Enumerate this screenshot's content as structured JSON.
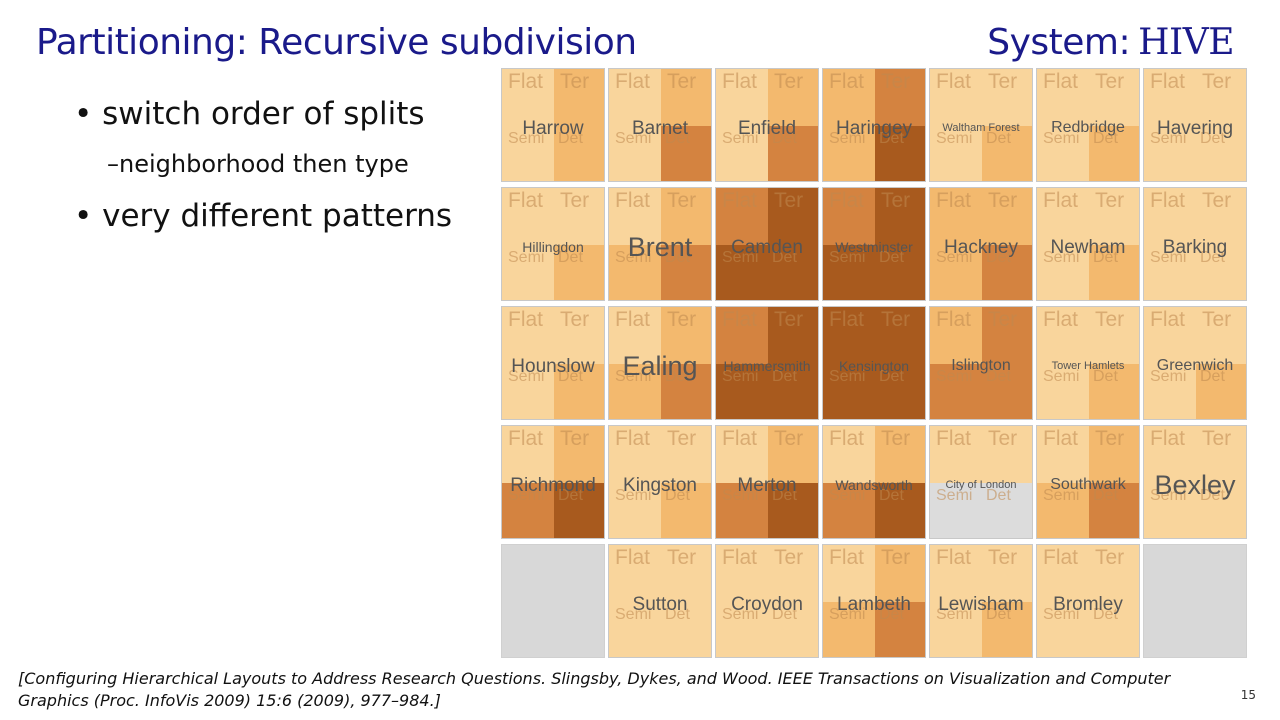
{
  "slide": {
    "title": "Partitioning: Recursive subdivision",
    "system_label": "System:",
    "system_name": "HIVE",
    "bullets": {
      "b1": "• switch order of splits",
      "b1_sub": "–neighborhood then type",
      "b2": "• very different patterns"
    },
    "citation": "[Configuring Hierarchical Layouts to Address Research Questions. Slingsby, Dykes, and Wood.  IEEE Transactions on Visualization and Computer Graphics (Proc. InfoVis 2009) 15:6 (2009), 977–984.]",
    "page_number": "15"
  },
  "quadrant_labels": [
    "Flat",
    "Ter",
    "Semi",
    "Det"
  ],
  "colors": {
    "light": "#fde6bd",
    "mid": "#f3b96e",
    "dark": "#a85a1e",
    "missing": "#d8d8d8",
    "text_blue": "#1a1a8a"
  },
  "neighborhoods": [
    {
      "name": "Harrow",
      "intensity": [
        1,
        2,
        1,
        2
      ]
    },
    {
      "name": "Barnet",
      "intensity": [
        1,
        2,
        1,
        3
      ]
    },
    {
      "name": "Enfield",
      "intensity": [
        1,
        2,
        1,
        3
      ]
    },
    {
      "name": "Haringey",
      "intensity": [
        2,
        3,
        2,
        4
      ]
    },
    {
      "name": "Waltham Forest",
      "intensity": [
        1,
        1,
        1,
        2
      ]
    },
    {
      "name": "Redbridge",
      "intensity": [
        1,
        1,
        1,
        2
      ]
    },
    {
      "name": "Havering",
      "intensity": [
        1,
        1,
        1,
        1
      ]
    },
    {
      "name": "Hillingdon",
      "intensity": [
        1,
        1,
        1,
        2
      ]
    },
    {
      "name": "Brent",
      "intensity": [
        1,
        2,
        2,
        3
      ]
    },
    {
      "name": "Camden",
      "intensity": [
        3,
        4,
        4,
        4
      ]
    },
    {
      "name": "Westminster",
      "intensity": [
        3,
        4,
        4,
        4
      ]
    },
    {
      "name": "Hackney",
      "intensity": [
        2,
        2,
        2,
        3
      ]
    },
    {
      "name": "Newham",
      "intensity": [
        1,
        1,
        1,
        2
      ]
    },
    {
      "name": "Barking",
      "intensity": [
        1,
        1,
        1,
        1
      ]
    },
    {
      "name": "Hounslow",
      "intensity": [
        1,
        1,
        1,
        2
      ]
    },
    {
      "name": "Ealing",
      "intensity": [
        1,
        2,
        2,
        3
      ]
    },
    {
      "name": "Hammersmith",
      "intensity": [
        3,
        4,
        4,
        4
      ]
    },
    {
      "name": "Kensington",
      "intensity": [
        4,
        4,
        4,
        4
      ]
    },
    {
      "name": "Islington",
      "intensity": [
        2,
        3,
        3,
        3
      ]
    },
    {
      "name": "Tower Hamlets",
      "intensity": [
        1,
        1,
        1,
        2
      ]
    },
    {
      "name": "Greenwich",
      "intensity": [
        1,
        1,
        1,
        2
      ]
    },
    {
      "name": "Richmond",
      "intensity": [
        1,
        2,
        3,
        4
      ]
    },
    {
      "name": "Kingston",
      "intensity": [
        1,
        1,
        1,
        2
      ]
    },
    {
      "name": "Merton",
      "intensity": [
        1,
        2,
        3,
        4
      ]
    },
    {
      "name": "Wandsworth",
      "intensity": [
        1,
        2,
        3,
        4
      ]
    },
    {
      "name": "City of London",
      "intensity": [
        1,
        1,
        0,
        0
      ]
    },
    {
      "name": "Southwark",
      "intensity": [
        1,
        2,
        2,
        3
      ]
    },
    {
      "name": "Bexley",
      "intensity": [
        1,
        1,
        1,
        1
      ]
    },
    {
      "name": "",
      "intensity": [
        0,
        0,
        0,
        0
      ]
    },
    {
      "name": "Sutton",
      "intensity": [
        1,
        1,
        1,
        1
      ]
    },
    {
      "name": "Croydon",
      "intensity": [
        1,
        1,
        1,
        1
      ]
    },
    {
      "name": "Lambeth",
      "intensity": [
        1,
        2,
        2,
        3
      ]
    },
    {
      "name": "Lewisham",
      "intensity": [
        1,
        1,
        1,
        2
      ]
    },
    {
      "name": "Bromley",
      "intensity": [
        1,
        1,
        1,
        1
      ]
    },
    {
      "name": "",
      "intensity": [
        0,
        0,
        0,
        0
      ]
    }
  ]
}
